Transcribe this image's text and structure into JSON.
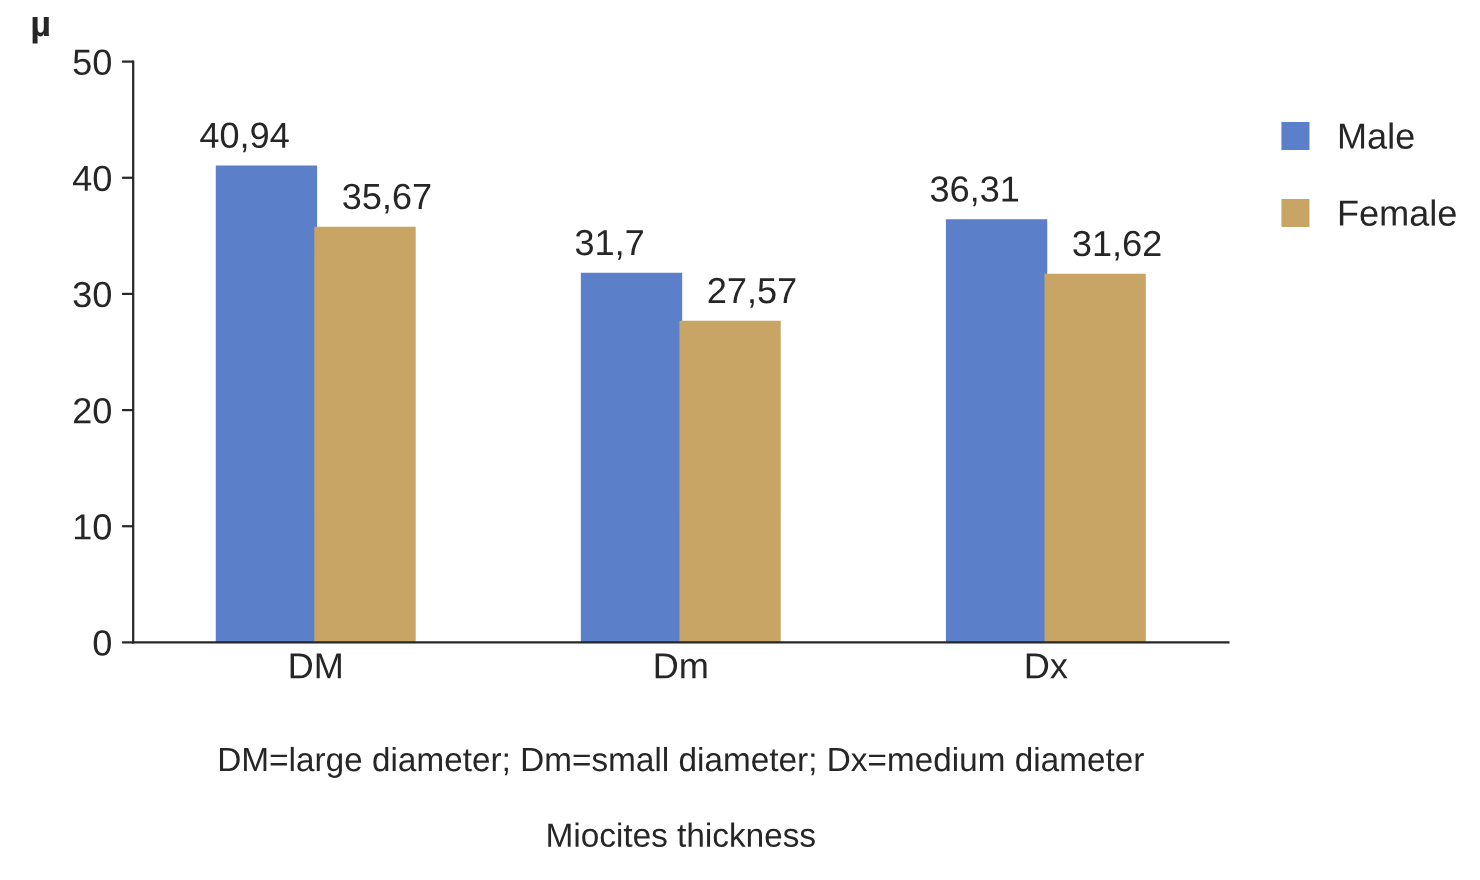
{
  "chart_data": {
    "type": "bar",
    "ylabel": "µ",
    "xlabel": "DM=large diameter; Dm=small diameter; Dx=medium diameter",
    "annotations": [
      "Miocites thickness"
    ],
    "categories": [
      "DM",
      "Dm",
      "Dx"
    ],
    "series": [
      {
        "name": "Male",
        "color": "#5b7fc8",
        "values": [
          40.94,
          31.7,
          36.31
        ],
        "value_labels": [
          "40,94",
          "31,7",
          "36,31"
        ]
      },
      {
        "name": "Female",
        "color": "#c8a465",
        "values": [
          35.67,
          27.57,
          31.62
        ],
        "value_labels": [
          "35,67",
          "27,57",
          "31,62"
        ]
      }
    ],
    "ylim": [
      0,
      50
    ],
    "yticks": [
      0,
      10,
      20,
      30,
      40,
      50
    ],
    "grid": false,
    "legend": "right"
  }
}
